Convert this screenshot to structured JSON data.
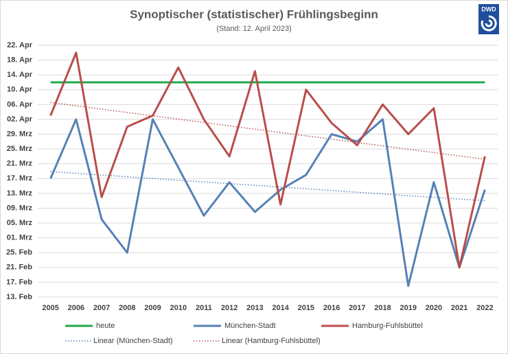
{
  "chart_data": {
    "type": "line",
    "title": "Synoptischer (statistischer) Frühlingsbeginn",
    "subtitle": "(Stand: 12. April 2023)",
    "logo": "DWD",
    "categories": [
      "2005",
      "2006",
      "2007",
      "2008",
      "2009",
      "2010",
      "2011",
      "2012",
      "2013",
      "2014",
      "2015",
      "2016",
      "2017",
      "2018",
      "2019",
      "2020",
      "2021",
      "2022"
    ],
    "ylim": [
      44,
      112
    ],
    "yticks": [
      {
        "value": 44,
        "label": "13. Feb"
      },
      {
        "value": 48,
        "label": "17. Feb"
      },
      {
        "value": 52,
        "label": "21. Feb"
      },
      {
        "value": 56,
        "label": "25. Feb"
      },
      {
        "value": 60,
        "label": "01. Mrz"
      },
      {
        "value": 64,
        "label": "05. Mrz"
      },
      {
        "value": 68,
        "label": "09. Mrz"
      },
      {
        "value": 72,
        "label": "13. Mrz"
      },
      {
        "value": 76,
        "label": "17. Mrz"
      },
      {
        "value": 80,
        "label": "21. Mrz"
      },
      {
        "value": 84,
        "label": "25. Mrz"
      },
      {
        "value": 88,
        "label": "29. Mrz"
      },
      {
        "value": 92,
        "label": "02. Apr"
      },
      {
        "value": 96,
        "label": "06. Apr"
      },
      {
        "value": 100,
        "label": "10. Apr"
      },
      {
        "value": 104,
        "label": "14. Apr"
      },
      {
        "value": 108,
        "label": "18. Apr"
      },
      {
        "value": 112,
        "label": "22. Apr"
      }
    ],
    "grid": true,
    "legend": "bottom",
    "series": [
      {
        "name": "heute",
        "color": "#1fa84a",
        "values": [
          102,
          102,
          102,
          102,
          102,
          102,
          102,
          102,
          102,
          102,
          102,
          102,
          102,
          102,
          102,
          102,
          102,
          102
        ]
      },
      {
        "name": "München-Stadt",
        "color": "#5581b5",
        "values": [
          76,
          92,
          65,
          56,
          92,
          79,
          66,
          75,
          67,
          73,
          77,
          88,
          86,
          92,
          47,
          75,
          52,
          73
        ]
      },
      {
        "name": "Hamburg-Fuhlsbüttel",
        "color": "#b84d4b",
        "values": [
          93,
          110,
          71,
          90,
          93,
          106,
          92,
          82,
          105,
          69,
          100,
          91,
          85,
          96,
          88,
          95,
          52,
          82
        ]
      }
    ],
    "trendlines": [
      {
        "name": "Linear (München-Stadt)",
        "color": "#5581b5",
        "of": "München-Stadt"
      },
      {
        "name": "Linear (Hamburg-Fuhlsbüttel)",
        "color": "#b84d4b",
        "of": "Hamburg-Fuhlsbüttel"
      }
    ]
  }
}
